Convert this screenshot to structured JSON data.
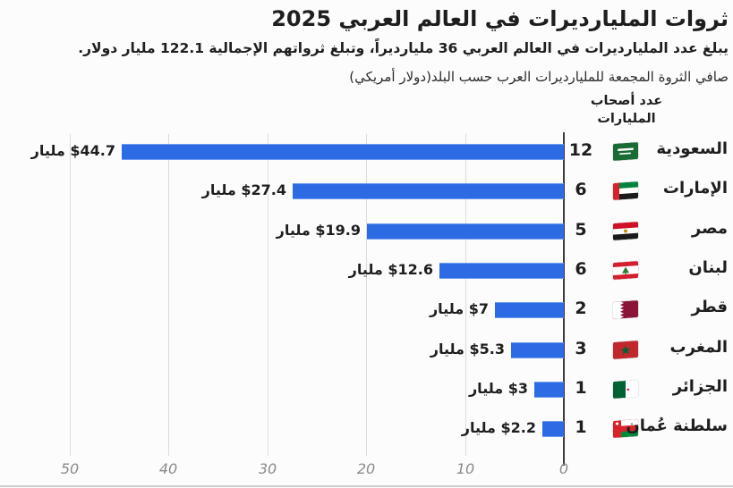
{
  "header": {
    "title": "ثروات المليارديرات في العالم العربي 2025",
    "subtitle": "يبلغ عدد المليارديرات في العالم العربي 36 مليارديراً، وتبلغ ثرواتهم الإجمالية 122.1 مليار دولار.",
    "note": "صافي الثروة المجمعة للمليارديرات العرب حسب البلد(دولار أمريكي)",
    "count_col_line1": "عدد أصحاب",
    "count_col_line2": "المليارات"
  },
  "chart_data": {
    "type": "bar",
    "orientation": "horizontal",
    "axis_reversed": true,
    "title": "ثروات المليارديرات في العالم العربي 2025",
    "subtitle": "يبلغ عدد المليارديرات في العالم العربي 36 مليارديراً، وتبلغ ثرواتهم الإجمالية 122.1 مليار دولار.",
    "units_note": "صافي الثروة المجمعة للمليارديرات العرب حسب البلد(دولار أمريكي)",
    "categories": [
      "السعودية",
      "الإمارات",
      "مصر",
      "لبنان",
      "قطر",
      "المغرب",
      "الجزائر",
      "سلطنة عُمان"
    ],
    "values": [
      44.7,
      27.4,
      19.9,
      12.6,
      7,
      5.3,
      3,
      2.2
    ],
    "counts": [
      12,
      6,
      5,
      6,
      2,
      3,
      1,
      1
    ],
    "value_labels": [
      "$44.7 مليار",
      "$27.4 مليار",
      "$19.9 مليار",
      "$12.6 مليار",
      "$7 مليار",
      "$5.3 مليار",
      "$3 مليار",
      "$2.2 مليار"
    ],
    "xlim": [
      0,
      55
    ],
    "x_ticks": [
      "50",
      "40",
      "30",
      "20",
      "10",
      "0"
    ],
    "grid": "vertical",
    "bar_color": "#2d6be4"
  },
  "rows": [
    {
      "country": "السعودية",
      "count": "12",
      "value_label": "$44.7 مليار",
      "flag": "saudi-arabia"
    },
    {
      "country": "الإمارات",
      "count": "6",
      "value_label": "$27.4 مليار",
      "flag": "uae"
    },
    {
      "country": "مصر",
      "count": "5",
      "value_label": "$19.9 مليار",
      "flag": "egypt"
    },
    {
      "country": "لبنان",
      "count": "6",
      "value_label": "$12.6 مليار",
      "flag": "lebanon"
    },
    {
      "country": "قطر",
      "count": "2",
      "value_label": "$7 مليار",
      "flag": "qatar"
    },
    {
      "country": "المغرب",
      "count": "3",
      "value_label": "$5.3 مليار",
      "flag": "morocco"
    },
    {
      "country": "الجزائر",
      "count": "1",
      "value_label": "$3 مليار",
      "flag": "algeria"
    },
    {
      "country": "سلطنة عُمان",
      "count": "1",
      "value_label": "$2.2 مليار",
      "flag": "oman"
    }
  ],
  "colors": {
    "bar": "#2d6be4",
    "axis": "#3c3c3c",
    "gridline": "#dcdcdc",
    "tick_text": "#8a8a8a",
    "text": "#1e1e1e"
  }
}
